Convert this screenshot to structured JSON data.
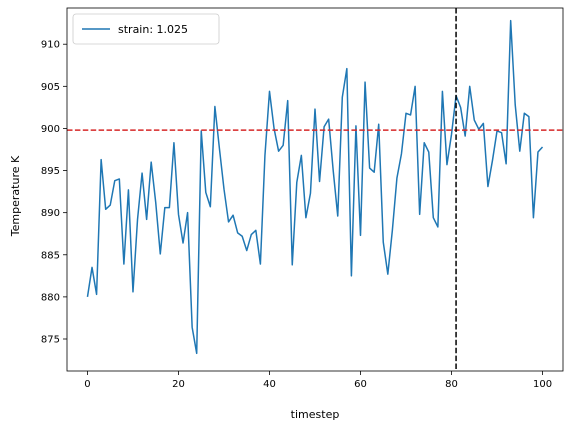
{
  "chart_data": {
    "type": "line",
    "xlabel": "timestep",
    "ylabel": "Temperature K",
    "xlim": [
      -4.5,
      104.5
    ],
    "ylim": [
      871.2,
      914.3
    ],
    "xticks": [
      0,
      20,
      40,
      60,
      80,
      100
    ],
    "yticks": [
      875,
      880,
      885,
      890,
      895,
      900,
      905,
      910
    ],
    "grid": false,
    "legend_position": "top-left",
    "hline": {
      "y": 899.8,
      "color": "#d62728",
      "style": "dashed"
    },
    "vline": {
      "x": 81,
      "color": "#000000",
      "style": "dashed"
    },
    "series": [
      {
        "name": "strain: 1.025",
        "color": "#1f77b4",
        "x": [
          0,
          1,
          2,
          3,
          4,
          5,
          6,
          7,
          8,
          9,
          10,
          11,
          12,
          13,
          14,
          15,
          16,
          17,
          18,
          19,
          20,
          21,
          22,
          23,
          24,
          25,
          26,
          27,
          28,
          29,
          30,
          31,
          32,
          33,
          34,
          35,
          36,
          37,
          38,
          39,
          40,
          41,
          42,
          43,
          44,
          45,
          46,
          47,
          48,
          49,
          50,
          51,
          52,
          53,
          54,
          55,
          56,
          57,
          58,
          59,
          60,
          61,
          62,
          63,
          64,
          65,
          66,
          67,
          68,
          69,
          70,
          71,
          72,
          73,
          74,
          75,
          76,
          77,
          78,
          79,
          80,
          81,
          82,
          83,
          84,
          85,
          86,
          87,
          88,
          89,
          90,
          91,
          92,
          93,
          94,
          95,
          96,
          97,
          98,
          99,
          100
        ],
        "values": [
          880.0,
          883.5,
          880.3,
          896.3,
          890.4,
          890.9,
          893.8,
          894.0,
          883.9,
          892.7,
          880.6,
          889.2,
          894.7,
          889.2,
          896.0,
          891.2,
          885.1,
          890.6,
          890.6,
          898.3,
          889.8,
          886.4,
          890.0,
          876.4,
          873.3,
          899.7,
          892.4,
          890.7,
          902.6,
          897.6,
          892.8,
          888.9,
          889.7,
          887.6,
          887.2,
          885.5,
          887.4,
          887.9,
          883.9,
          896.8,
          904.4,
          900.0,
          897.3,
          898.0,
          903.3,
          883.8,
          893.6,
          896.8,
          889.4,
          892.3,
          902.3,
          893.7,
          900.2,
          901.1,
          895.0,
          889.6,
          903.7,
          907.1,
          882.5,
          900.3,
          887.3,
          905.5,
          895.3,
          894.8,
          900.5,
          886.5,
          882.7,
          887.9,
          894.1,
          897.0,
          901.8,
          901.6,
          905.0,
          889.8,
          898.3,
          897.2,
          889.4,
          888.3,
          904.4,
          895.7,
          899.3,
          903.9,
          902.5,
          899.1,
          905.0,
          901.0,
          899.9,
          900.6,
          893.1,
          896.2,
          899.7,
          899.5,
          895.8,
          912.8,
          902.8,
          897.3,
          901.8,
          901.4,
          889.4,
          897.2,
          897.8
        ]
      }
    ]
  }
}
